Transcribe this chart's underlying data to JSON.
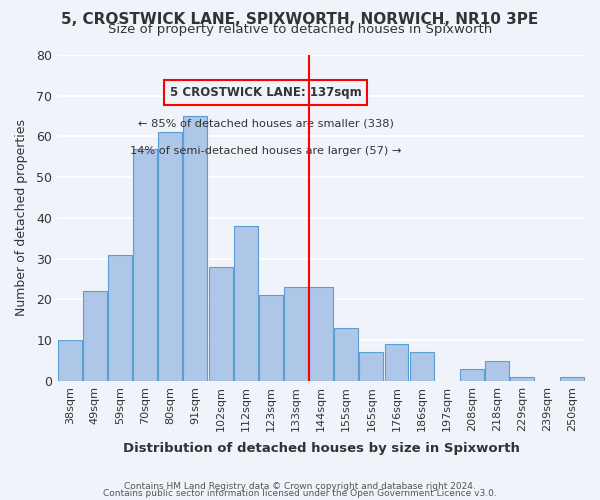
{
  "title": "5, CROSTWICK LANE, SPIXWORTH, NORWICH, NR10 3PE",
  "subtitle": "Size of property relative to detached houses in Spixworth",
  "xlabel": "Distribution of detached houses by size in Spixworth",
  "ylabel": "Number of detached properties",
  "bar_color": "#aec6e8",
  "bar_edge_color": "#5a9fd4",
  "background_color": "#f0f4fa",
  "categories": [
    "38sqm",
    "49sqm",
    "59sqm",
    "70sqm",
    "80sqm",
    "91sqm",
    "102sqm",
    "112sqm",
    "123sqm",
    "133sqm",
    "144sqm",
    "155sqm",
    "165sqm",
    "176sqm",
    "186sqm",
    "197sqm",
    "208sqm",
    "218sqm",
    "229sqm",
    "239sqm",
    "250sqm"
  ],
  "values": [
    10,
    22,
    31,
    57,
    61,
    65,
    28,
    38,
    21,
    23,
    23,
    13,
    7,
    9,
    7,
    0,
    3,
    5,
    1,
    0,
    1
  ],
  "ylim": [
    0,
    80
  ],
  "yticks": [
    0,
    10,
    20,
    30,
    40,
    50,
    60,
    70,
    80
  ],
  "annotation_title": "5 CROSTWICK LANE: 137sqm",
  "annotation_line1": "← 85% of detached houses are smaller (338)",
  "annotation_line2": "14% of semi-detached houses are larger (57) →",
  "vline_x": 9.5,
  "footer_line1": "Contains HM Land Registry data © Crown copyright and database right 2024.",
  "footer_line2": "Contains public sector information licensed under the Open Government Licence v3.0."
}
